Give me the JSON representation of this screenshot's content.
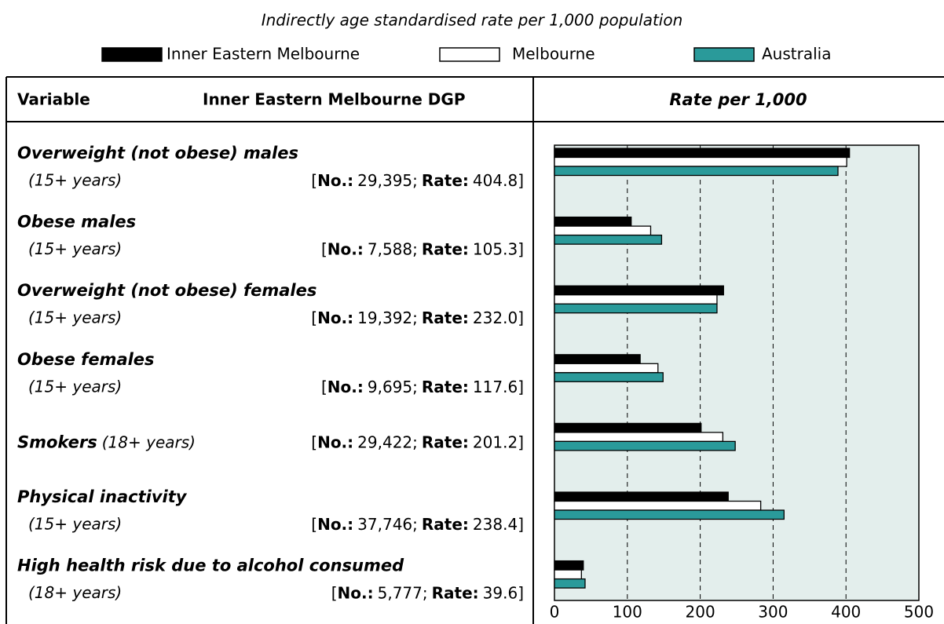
{
  "chart_data": {
    "type": "bar",
    "orientation": "horizontal",
    "title": "Indirectly age standardised rate per 1,000 population",
    "headers": [
      "Variable",
      "Inner Eastern Melbourne DGP",
      "Rate per 1,000"
    ],
    "categories": [
      "Overweight (not obese) males",
      "Obese males",
      "Overweight (not obese) females",
      "Obese females",
      "Smokers",
      "Physical inactivity",
      "High health risk due to alcohol consumed"
    ],
    "qualifiers": [
      "(15+ years)",
      "(15+ years)",
      "(15+ years)",
      "(15+ years)",
      "(18+ years)",
      "(15+ years)",
      "(18+ years)"
    ],
    "inline_qualifier": [
      false,
      false,
      false,
      false,
      true,
      false,
      false
    ],
    "numbers": [
      "29,395",
      "7,588",
      "19,392",
      "9,695",
      "29,422",
      "37,746",
      "5,777"
    ],
    "number_label": "No.:",
    "rate_label": "Rate:",
    "bracket_open": "[",
    "separator": ";",
    "bracket_close": "]",
    "series": [
      {
        "name": "Inner Eastern Melbourne",
        "color": "#000000",
        "values": [
          404.8,
          105.3,
          232.0,
          117.6,
          201.2,
          238.4,
          39.6
        ],
        "value_labels": [
          "404.8",
          "105.3",
          "232.0",
          "117.6",
          "201.2",
          "238.4",
          "39.6"
        ]
      },
      {
        "name": "Melbourne",
        "color": "#ffffff",
        "values": [
          401,
          132,
          223,
          142,
          231,
          283,
          37
        ]
      },
      {
        "name": "Australia",
        "color": "#2a9a9a",
        "values": [
          389,
          147,
          223,
          149,
          248,
          315,
          42
        ]
      }
    ],
    "xlim": [
      0,
      500
    ],
    "xticks": [
      0,
      100,
      200,
      300,
      400,
      500
    ],
    "grid": true
  }
}
